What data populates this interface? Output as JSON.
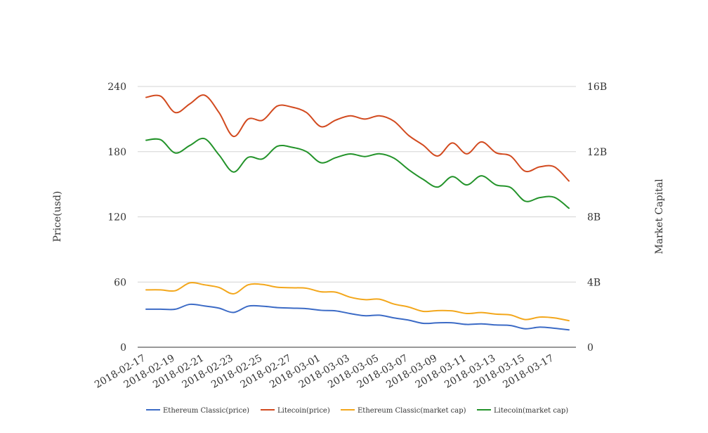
{
  "chart_data": {
    "type": "line",
    "x": [
      "2018-02-17",
      "2018-02-18",
      "2018-02-19",
      "2018-02-20",
      "2018-02-21",
      "2018-02-22",
      "2018-02-23",
      "2018-02-24",
      "2018-02-25",
      "2018-02-26",
      "2018-02-27",
      "2018-02-28",
      "2018-03-01",
      "2018-03-02",
      "2018-03-03",
      "2018-03-04",
      "2018-03-05",
      "2018-03-06",
      "2018-03-07",
      "2018-03-08",
      "2018-03-09",
      "2018-03-10",
      "2018-03-11",
      "2018-03-12",
      "2018-03-13",
      "2018-03-14",
      "2018-03-15",
      "2018-03-16",
      "2018-03-17",
      "2018-03-18"
    ],
    "xticks": [
      "2018-02-17",
      "2018-02-19",
      "2018-02-21",
      "2018-02-23",
      "2018-02-25",
      "2018-02-27",
      "2018-03-01",
      "2018-03-03",
      "2018-03-05",
      "2018-03-07",
      "2018-03-09",
      "2018-03-11",
      "2018-03-13",
      "2018-03-15",
      "2018-03-17"
    ],
    "ylabel_left": "Price(usd)",
    "ylabel_right": "Market Capital",
    "ylim_left": [
      0,
      240
    ],
    "ylim_right": [
      0,
      16000000000
    ],
    "yticks_left": [
      "0",
      "60",
      "120",
      "180",
      "240"
    ],
    "yticks_right": [
      "0",
      "4B",
      "8B",
      "12B",
      "16B"
    ],
    "grid": true,
    "legend_position": "bottom",
    "series": [
      {
        "name": "Ethereum Classic(price)",
        "axis": "left",
        "color": "#3c6bc6",
        "values": [
          35,
          35,
          35,
          39.5,
          38,
          36,
          32,
          37.8,
          37.8,
          36.5,
          36,
          35.5,
          34,
          33.5,
          31,
          29,
          29.5,
          27,
          25,
          22,
          22.5,
          22.5,
          21,
          21.5,
          20.5,
          20,
          17,
          18.5,
          17.5,
          16
        ]
      },
      {
        "name": "Litecoin(price)",
        "axis": "left",
        "color": "#d24a1f",
        "values": [
          230,
          231,
          216,
          224,
          232,
          216,
          194,
          210,
          209,
          222,
          221,
          216,
          203,
          209,
          213,
          210,
          213,
          208,
          195,
          186,
          176,
          188,
          178,
          189,
          179,
          176,
          162,
          166,
          166,
          153
        ]
      },
      {
        "name": "Ethereum Classic(market cap)",
        "axis": "right",
        "color": "#f3a71c",
        "values": [
          3520000000,
          3520000000,
          3470000000,
          3950000000,
          3830000000,
          3670000000,
          3280000000,
          3830000000,
          3850000000,
          3680000000,
          3650000000,
          3620000000,
          3400000000,
          3380000000,
          3070000000,
          2920000000,
          2950000000,
          2650000000,
          2470000000,
          2200000000,
          2250000000,
          2230000000,
          2070000000,
          2130000000,
          2030000000,
          1980000000,
          1700000000,
          1850000000,
          1800000000,
          1630000000
        ]
      },
      {
        "name": "Litecoin(market cap)",
        "axis": "right",
        "color": "#23932a",
        "values": [
          12700000000,
          12730000000,
          11920000000,
          12380000000,
          12800000000,
          11800000000,
          10750000000,
          11650000000,
          11560000000,
          12330000000,
          12270000000,
          12000000000,
          11320000000,
          11630000000,
          11860000000,
          11700000000,
          11870000000,
          11600000000,
          10900000000,
          10300000000,
          9830000000,
          10470000000,
          9960000000,
          10520000000,
          9960000000,
          9800000000,
          8960000000,
          9180000000,
          9200000000,
          8530000000
        ]
      }
    ]
  }
}
